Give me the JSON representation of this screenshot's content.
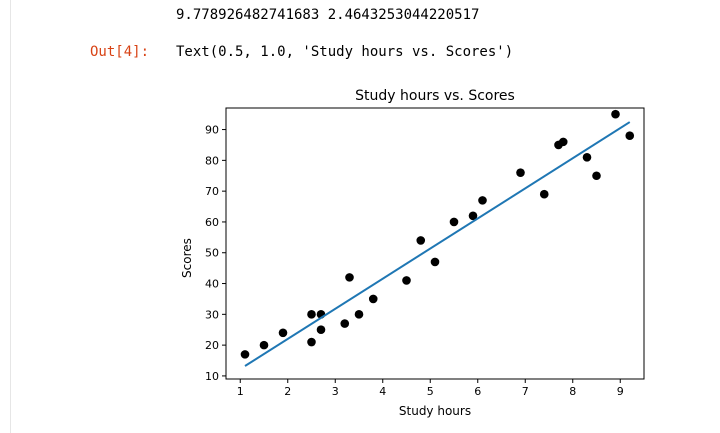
{
  "notebook": {
    "stdout_line": "9.778926482741683 2.4643253044220517",
    "out_prompt": "Out[4]:",
    "out_text": "Text(0.5, 1.0, 'Study hours vs. Scores')"
  },
  "chart_data": {
    "type": "scatter",
    "title": "Study hours vs. Scores",
    "xlabel": "Study hours",
    "ylabel": "Scores",
    "xlim": [
      0.7,
      9.5
    ],
    "ylim": [
      9,
      97
    ],
    "xticks": [
      1,
      2,
      3,
      4,
      5,
      6,
      7,
      8,
      9
    ],
    "yticks": [
      10,
      20,
      30,
      40,
      50,
      60,
      70,
      80,
      90
    ],
    "grid": false,
    "series": [
      {
        "type": "scatter",
        "color": "#000000",
        "x": [
          1.1,
          1.5,
          1.9,
          2.5,
          2.5,
          2.7,
          2.7,
          3.2,
          3.3,
          3.5,
          3.8,
          4.5,
          4.8,
          5.1,
          5.5,
          5.9,
          6.1,
          6.9,
          7.4,
          7.7,
          7.8,
          8.3,
          8.5,
          8.9,
          9.2
        ],
        "y": [
          17,
          20,
          24,
          21,
          30,
          25,
          30,
          27,
          42,
          30,
          35,
          41,
          54,
          47,
          60,
          62,
          67,
          76,
          69,
          85,
          86,
          81,
          75,
          95,
          88
        ]
      },
      {
        "type": "line",
        "color": "#1f77b4",
        "x": [
          1.1,
          9.2
        ],
        "y": [
          13.22,
          92.43
        ]
      }
    ]
  }
}
